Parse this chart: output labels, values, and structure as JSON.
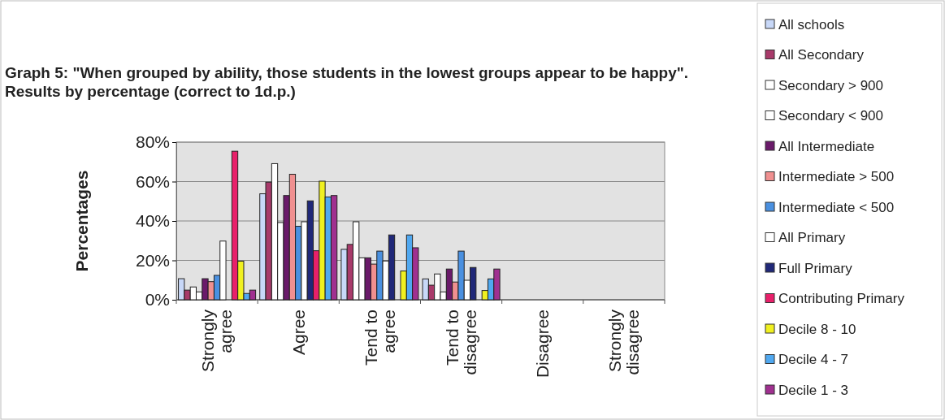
{
  "chart_data": {
    "type": "bar",
    "title": "Graph 5: \"When grouped by ability, those students in the lowest groups appear to be happy\".  Results by percentage (correct to 1d.p.)",
    "ylabel": "Percentages",
    "categories": [
      "Strongly agree",
      "Agree",
      "Tend to agree",
      "Tend to disagree",
      "Disagree",
      "Strongly disagree"
    ],
    "ylim": [
      0,
      80
    ],
    "yticks": [
      {
        "value": 0,
        "label": "0%"
      },
      {
        "value": 20,
        "label": "20%"
      },
      {
        "value": 40,
        "label": "40%"
      },
      {
        "value": 60,
        "label": "60%"
      },
      {
        "value": 80,
        "label": "80%"
      }
    ],
    "grid": "y",
    "legend": "right",
    "series": [
      {
        "name": "All schools",
        "color": "#c8d8f8",
        "values": [
          10.7,
          53.8,
          25.6,
          10.6,
          0,
          0
        ]
      },
      {
        "name": "All Secondary",
        "color": "#a83a6a",
        "values": [
          4.9,
          59.7,
          28.1,
          7.4,
          0,
          0
        ]
      },
      {
        "name": "Secondary > 900",
        "color": "#ffffff",
        "values": [
          6.5,
          69.1,
          39.6,
          13.1,
          0,
          0
        ]
      },
      {
        "name": "Secondary < 900",
        "color": "#ffffff",
        "values": [
          4.0,
          39.2,
          21.3,
          4.0,
          0,
          0
        ]
      },
      {
        "name": "All Intermediate",
        "color": "#6a1a6a",
        "values": [
          10.7,
          52.9,
          21.3,
          15.6,
          0,
          0
        ]
      },
      {
        "name": "Intermediate > 500",
        "color": "#f09090",
        "values": [
          9.2,
          63.7,
          18.1,
          9.0,
          0,
          0
        ]
      },
      {
        "name": "Intermediate < 500",
        "color": "#4a90e0",
        "values": [
          12.4,
          37.3,
          24.7,
          24.7,
          0,
          0
        ]
      },
      {
        "name": "All Primary",
        "color": "#ffffff",
        "values": [
          29.8,
          39.6,
          19.7,
          9.9,
          0,
          0
        ]
      },
      {
        "name": "Full Primary",
        "color": "#202878",
        "values": [
          0,
          50.2,
          32.9,
          16.4,
          0,
          0
        ]
      },
      {
        "name": "Contributing Primary",
        "color": "#e8206a",
        "values": [
          75.4,
          24.9,
          0,
          0,
          0,
          0
        ]
      },
      {
        "name": "Decile 8 - 10",
        "color": "#f0f020",
        "values": [
          19.6,
          60.2,
          14.6,
          4.7,
          0,
          0
        ]
      },
      {
        "name": "Decile 4 - 7",
        "color": "#50a8f0",
        "values": [
          3.2,
          52.2,
          32.9,
          10.6,
          0,
          0
        ]
      },
      {
        "name": "Decile 1 - 3",
        "color": "#a03090",
        "values": [
          4.9,
          52.9,
          26.4,
          15.6,
          0,
          0
        ]
      }
    ]
  }
}
